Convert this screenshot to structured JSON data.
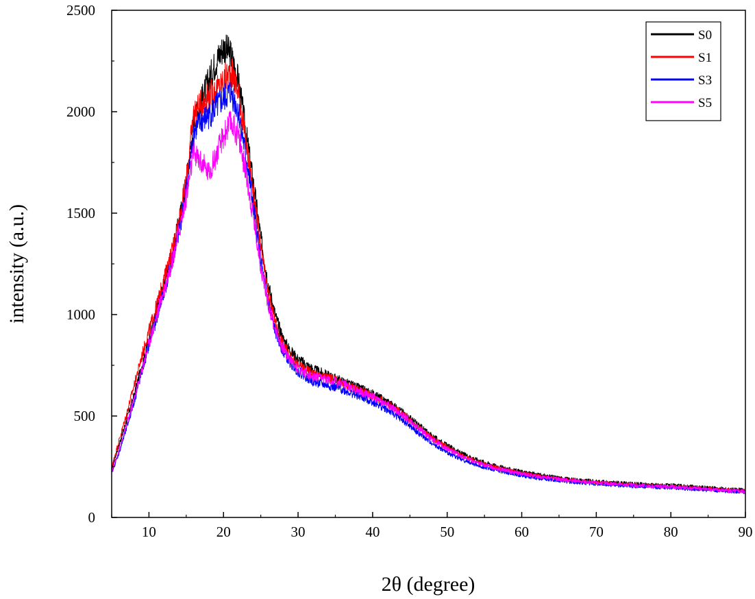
{
  "chart_data": {
    "type": "line",
    "title": "",
    "xlabel": "2θ (degree)",
    "ylabel": "intensity (a.u.)",
    "xlim": [
      5,
      90
    ],
    "ylim": [
      0,
      2500
    ],
    "xticks": [
      10,
      20,
      30,
      40,
      50,
      60,
      70,
      80,
      90
    ],
    "yticks": [
      0,
      500,
      1000,
      1500,
      2000,
      2500
    ],
    "grid": false,
    "legend_position": "top-right",
    "x": [
      5,
      6,
      7,
      8,
      9,
      10,
      11,
      12,
      13,
      14,
      15,
      16,
      17,
      18,
      19,
      20,
      21,
      22,
      23,
      24,
      25,
      26,
      27,
      28,
      29,
      30,
      32,
      34,
      36,
      38,
      40,
      42,
      44,
      46,
      48,
      50,
      52,
      54,
      56,
      58,
      60,
      62,
      64,
      66,
      68,
      70,
      72,
      74,
      76,
      78,
      80,
      82,
      84,
      86,
      88,
      90
    ],
    "series": [
      {
        "name": "S0",
        "color": "#000000",
        "values": [
          240,
          360,
          480,
          600,
          740,
          880,
          1010,
          1150,
          1290,
          1450,
          1650,
          1950,
          2050,
          2150,
          2250,
          2320,
          2280,
          2150,
          1900,
          1650,
          1380,
          1150,
          990,
          880,
          820,
          780,
          730,
          700,
          670,
          640,
          610,
          570,
          520,
          460,
          400,
          355,
          315,
          285,
          260,
          240,
          225,
          212,
          200,
          190,
          183,
          177,
          172,
          167,
          163,
          160,
          157,
          153,
          148,
          143,
          138,
          135
        ]
      },
      {
        "name": "S1",
        "color": "#ff0000",
        "values": [
          250,
          380,
          510,
          650,
          790,
          920,
          1040,
          1170,
          1300,
          1460,
          1660,
          1990,
          2040,
          2080,
          2100,
          2150,
          2200,
          2100,
          1850,
          1600,
          1320,
          1100,
          950,
          850,
          790,
          750,
          710,
          690,
          660,
          630,
          600,
          560,
          510,
          450,
          390,
          345,
          305,
          275,
          252,
          233,
          218,
          205,
          194,
          185,
          178,
          172,
          167,
          162,
          158,
          155,
          152,
          148,
          143,
          138,
          133,
          130
        ]
      },
      {
        "name": "S3",
        "color": "#0000ff",
        "values": [
          220,
          320,
          440,
          570,
          710,
          850,
          980,
          1110,
          1240,
          1400,
          1610,
          1900,
          1950,
          1980,
          2020,
          2060,
          2100,
          2000,
          1780,
          1530,
          1260,
          1050,
          910,
          820,
          760,
          720,
          670,
          650,
          630,
          600,
          570,
          530,
          480,
          420,
          365,
          320,
          285,
          258,
          238,
          220,
          206,
          195,
          186,
          178,
          171,
          166,
          161,
          157,
          153,
          150,
          147,
          143,
          138,
          133,
          128,
          125
        ]
      },
      {
        "name": "S5",
        "color": "#ff00ff",
        "values": [
          225,
          335,
          455,
          585,
          720,
          860,
          990,
          1120,
          1250,
          1400,
          1580,
          1800,
          1750,
          1700,
          1780,
          1880,
          1950,
          1880,
          1700,
          1480,
          1240,
          1050,
          920,
          830,
          775,
          735,
          690,
          680,
          660,
          625,
          595,
          555,
          505,
          445,
          385,
          340,
          300,
          270,
          248,
          230,
          215,
          203,
          193,
          184,
          177,
          171,
          166,
          161,
          157,
          154,
          151,
          147,
          142,
          137,
          132,
          129
        ]
      }
    ]
  }
}
